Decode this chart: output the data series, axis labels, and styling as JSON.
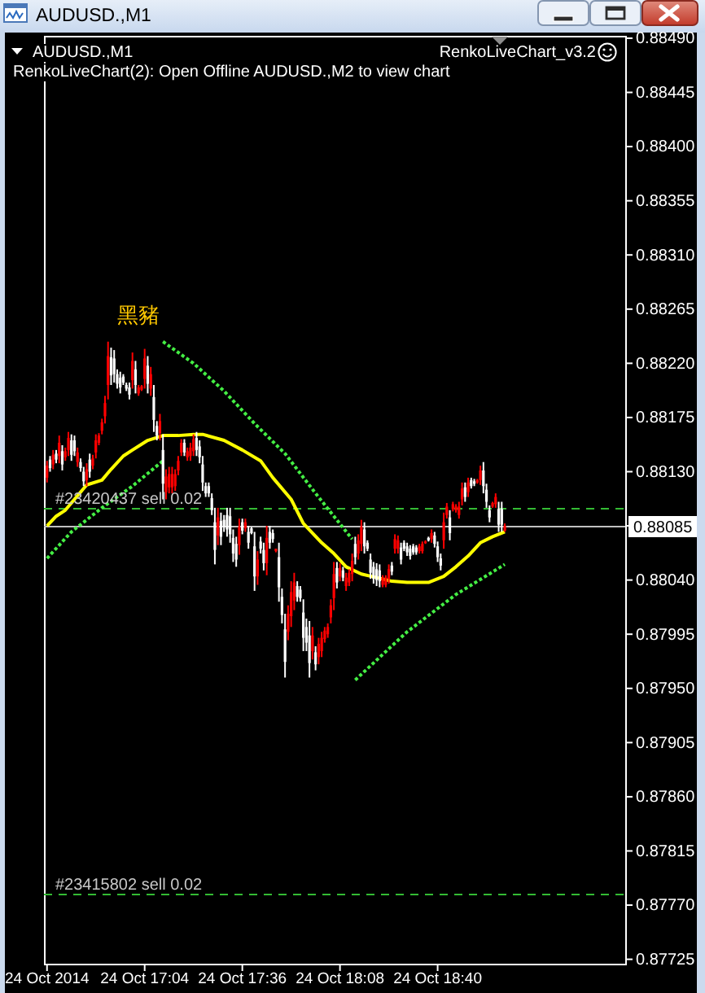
{
  "chart_data": {
    "type": "candlestick",
    "title": "AUDUSD.,M1",
    "subtitle": "RenkoLiveChart(2): Open Offline AUDUSD.,M2 to view chart",
    "annotations": [
      "AUDUSD.,M1",
      "RenkoLiveChart_v3.2",
      "黑豬"
    ],
    "x": [
      "2014-10-24T16:32",
      "2014-10-24T16:33",
      "2014-10-24T16:34",
      "2014-10-24T16:35",
      "2014-10-24T16:36",
      "2014-10-24T16:37",
      "2014-10-24T16:38",
      "2014-10-24T16:39",
      "2014-10-24T16:40",
      "2014-10-24T16:41",
      "2014-10-24T16:42",
      "2014-10-24T16:43",
      "2014-10-24T16:44",
      "2014-10-24T16:45",
      "2014-10-24T16:46",
      "2014-10-24T16:47",
      "2014-10-24T16:48",
      "2014-10-24T16:49",
      "2014-10-24T16:50",
      "2014-10-24T16:51",
      "2014-10-24T16:52",
      "2014-10-24T16:53",
      "2014-10-24T16:54",
      "2014-10-24T16:55",
      "2014-10-24T16:56",
      "2014-10-24T16:57",
      "2014-10-24T16:58",
      "2014-10-24T16:59",
      "2014-10-24T17:00",
      "2014-10-24T17:01",
      "2014-10-24T17:02",
      "2014-10-24T17:03",
      "2014-10-24T17:04",
      "2014-10-24T17:05",
      "2014-10-24T17:06",
      "2014-10-24T17:07",
      "2014-10-24T17:08",
      "2014-10-24T17:09",
      "2014-10-24T17:10",
      "2014-10-24T17:11",
      "2014-10-24T17:12",
      "2014-10-24T17:13",
      "2014-10-24T17:14",
      "2014-10-24T17:15",
      "2014-10-24T17:16",
      "2014-10-24T17:17",
      "2014-10-24T17:18",
      "2014-10-24T17:19",
      "2014-10-24T17:20",
      "2014-10-24T17:21",
      "2014-10-24T17:22",
      "2014-10-24T17:23",
      "2014-10-24T17:24",
      "2014-10-24T17:25",
      "2014-10-24T17:26",
      "2014-10-24T17:27",
      "2014-10-24T17:28",
      "2014-10-24T17:29",
      "2014-10-24T17:30",
      "2014-10-24T17:31",
      "2014-10-24T17:32",
      "2014-10-24T17:33",
      "2014-10-24T17:34",
      "2014-10-24T17:35",
      "2014-10-24T17:36",
      "2014-10-24T17:37",
      "2014-10-24T17:38",
      "2014-10-24T17:39",
      "2014-10-24T17:40",
      "2014-10-24T17:41",
      "2014-10-24T17:42",
      "2014-10-24T17:43",
      "2014-10-24T17:44",
      "2014-10-24T17:45",
      "2014-10-24T17:46",
      "2014-10-24T17:47",
      "2014-10-24T17:48",
      "2014-10-24T17:49",
      "2014-10-24T17:50",
      "2014-10-24T17:51",
      "2014-10-24T17:52",
      "2014-10-24T17:53",
      "2014-10-24T17:54",
      "2014-10-24T17:55",
      "2014-10-24T17:56",
      "2014-10-24T17:57",
      "2014-10-24T17:58",
      "2014-10-24T17:59",
      "2014-10-24T18:00",
      "2014-10-24T18:01",
      "2014-10-24T18:02",
      "2014-10-24T18:03",
      "2014-10-24T18:04",
      "2014-10-24T18:05",
      "2014-10-24T18:06",
      "2014-10-24T18:07",
      "2014-10-24T18:08",
      "2014-10-24T18:09",
      "2014-10-24T18:10",
      "2014-10-24T18:11",
      "2014-10-24T18:12",
      "2014-10-24T18:13",
      "2014-10-24T18:14",
      "2014-10-24T18:15",
      "2014-10-24T18:16",
      "2014-10-24T18:17",
      "2014-10-24T18:18",
      "2014-10-24T18:19",
      "2014-10-24T18:20",
      "2014-10-24T18:21",
      "2014-10-24T18:22",
      "2014-10-24T18:23",
      "2014-10-24T18:24",
      "2014-10-24T18:25",
      "2014-10-24T18:26",
      "2014-10-24T18:27",
      "2014-10-24T18:28",
      "2014-10-24T18:29",
      "2014-10-24T18:30",
      "2014-10-24T18:31",
      "2014-10-24T18:32",
      "2014-10-24T18:33",
      "2014-10-24T18:34",
      "2014-10-24T18:35",
      "2014-10-24T18:36",
      "2014-10-24T18:37",
      "2014-10-24T18:38",
      "2014-10-24T18:39",
      "2014-10-24T18:40",
      "2014-10-24T18:41",
      "2014-10-24T18:42",
      "2014-10-24T18:43",
      "2014-10-24T18:44",
      "2014-10-24T18:45",
      "2014-10-24T18:46",
      "2014-10-24T18:47",
      "2014-10-24T18:48",
      "2014-10-24T18:49",
      "2014-10-24T18:50",
      "2014-10-24T18:51",
      "2014-10-24T18:52",
      "2014-10-24T18:53",
      "2014-10-24T18:54",
      "2014-10-24T18:55",
      "2014-10-24T18:56",
      "2014-10-24T18:57",
      "2014-10-24T18:58",
      "2014-10-24T18:59",
      "2014-10-24T19:00",
      "2014-10-24T19:01",
      "2014-10-24T19:02"
    ],
    "ohlc": [
      [
        0.88125,
        0.88139,
        0.88121,
        0.88135
      ],
      [
        0.8814,
        0.88143,
        0.8813,
        0.88133
      ],
      [
        0.88136,
        0.88148,
        0.88132,
        0.88144
      ],
      [
        0.88145,
        0.88148,
        0.88137,
        0.8814
      ],
      [
        0.88143,
        0.8816,
        0.88137,
        0.88154
      ],
      [
        0.88147,
        0.88152,
        0.88131,
        0.88136
      ],
      [
        0.88142,
        0.8815,
        0.88139,
        0.88147
      ],
      [
        0.88148,
        0.88163,
        0.88143,
        0.88158
      ],
      [
        0.88156,
        0.88161,
        0.88139,
        0.88144
      ],
      [
        0.88156,
        0.8816,
        0.88143,
        0.88147
      ],
      [
        0.88138,
        0.8815,
        0.88134,
        0.88146
      ],
      [
        0.88138,
        0.88141,
        0.8813,
        0.88133
      ],
      [
        0.8813,
        0.88134,
        0.88118,
        0.88122
      ],
      [
        0.88123,
        0.88137,
        0.88118,
        0.88132
      ],
      [
        0.8814,
        0.88145,
        0.88125,
        0.8813
      ],
      [
        0.88135,
        0.88144,
        0.88132,
        0.88141
      ],
      [
        0.88146,
        0.88161,
        0.88141,
        0.88156
      ],
      [
        0.88154,
        0.88162,
        0.88152,
        0.8816
      ],
      [
        0.88164,
        0.88174,
        0.88161,
        0.88171
      ],
      [
        0.88176,
        0.88193,
        0.8817,
        0.88187
      ],
      [
        0.88202,
        0.88238,
        0.8819,
        0.88226
      ],
      [
        0.88225,
        0.88233,
        0.88202,
        0.8821
      ],
      [
        0.88224,
        0.88231,
        0.88204,
        0.88211
      ],
      [
        0.88211,
        0.88215,
        0.88199,
        0.88203
      ],
      [
        0.88208,
        0.88213,
        0.88195,
        0.882
      ],
      [
        0.88209,
        0.88211,
        0.88202,
        0.88204
      ],
      [
        0.88202,
        0.88204,
        0.88197,
        0.88199
      ],
      [
        0.882,
        0.88204,
        0.8819,
        0.88194
      ],
      [
        0.88206,
        0.88229,
        0.88199,
        0.88222
      ],
      [
        0.88215,
        0.88222,
        0.88195,
        0.88202
      ],
      [
        0.88195,
        0.88202,
        0.88193,
        0.882
      ],
      [
        0.88198,
        0.88202,
        0.88197,
        0.88201
      ],
      [
        0.88207,
        0.88232,
        0.88199,
        0.88224
      ],
      [
        0.88218,
        0.88226,
        0.88195,
        0.88203
      ],
      [
        0.88199,
        0.88217,
        0.88193,
        0.88211
      ],
      [
        0.88192,
        0.88202,
        0.88163,
        0.88173
      ],
      [
        0.88168,
        0.88172,
        0.88156,
        0.8816
      ],
      [
        0.88162,
        0.88178,
        0.88156,
        0.88172
      ],
      [
        0.88148,
        0.88161,
        0.88107,
        0.8812
      ],
      [
        0.88113,
        0.88132,
        0.88107,
        0.88126
      ],
      [
        0.88117,
        0.88134,
        0.88112,
        0.88128
      ],
      [
        0.88117,
        0.88134,
        0.88112,
        0.88128
      ],
      [
        0.88118,
        0.88132,
        0.88114,
        0.88128
      ],
      [
        0.88131,
        0.88143,
        0.88127,
        0.88139
      ],
      [
        0.88146,
        0.88157,
        0.88143,
        0.88154
      ],
      [
        0.88154,
        0.88157,
        0.88143,
        0.88146
      ],
      [
        0.88142,
        0.8815,
        0.88139,
        0.88147
      ],
      [
        0.88143,
        0.88154,
        0.88139,
        0.8815
      ],
      [
        0.88147,
        0.88161,
        0.88143,
        0.88157
      ],
      [
        0.88158,
        0.88163,
        0.88143,
        0.88148
      ],
      [
        0.88151,
        0.88156,
        0.88137,
        0.88142
      ],
      [
        0.88136,
        0.88143,
        0.88114,
        0.88121
      ],
      [
        0.88118,
        0.88121,
        0.88109,
        0.88112
      ],
      [
        0.88118,
        0.88121,
        0.88109,
        0.88112
      ],
      [
        0.88108,
        0.88112,
        0.88094,
        0.88098
      ],
      [
        0.88088,
        0.881,
        0.88053,
        0.88065
      ],
      [
        0.88077,
        0.881,
        0.88069,
        0.88092
      ],
      [
        0.88089,
        0.88096,
        0.88069,
        0.88076
      ],
      [
        0.8809,
        0.88094,
        0.8808,
        0.88084
      ],
      [
        0.88094,
        0.881,
        0.88076,
        0.88082
      ],
      [
        0.88093,
        0.881,
        0.88071,
        0.88078
      ],
      [
        0.88075,
        0.88082,
        0.88055,
        0.88062
      ],
      [
        0.8807,
        0.88076,
        0.88051,
        0.88057
      ],
      [
        0.88069,
        0.88091,
        0.88061,
        0.88084
      ],
      [
        0.88088,
        0.88091,
        0.88078,
        0.88081
      ],
      [
        0.88083,
        0.88091,
        0.8808,
        0.88088
      ],
      [
        0.8808,
        0.88085,
        0.88066,
        0.88071
      ],
      [
        0.88083,
        0.88084,
        0.88078,
        0.88079
      ],
      [
        0.88068,
        0.8808,
        0.88031,
        0.88043
      ],
      [
        0.88043,
        0.88064,
        0.88036,
        0.88057
      ],
      [
        0.88072,
        0.88076,
        0.88062,
        0.88066
      ],
      [
        0.88065,
        0.88071,
        0.88048,
        0.88054
      ],
      [
        0.88054,
        0.88085,
        0.88044,
        0.88075
      ],
      [
        0.8808,
        0.88085,
        0.88066,
        0.88071
      ],
      [
        0.88079,
        0.88082,
        0.88071,
        0.88074
      ],
      [
        0.88064,
        0.88066,
        0.88063,
        0.88066
      ],
      [
        0.88059,
        0.88071,
        0.88022,
        0.88034
      ],
      [
        0.88026,
        0.88033,
        0.88004,
        0.88011
      ],
      [
        0.87999,
        0.88012,
        0.87959,
        0.87972
      ],
      [
        0.87997,
        0.88019,
        0.8799,
        0.88012
      ],
      [
        0.8801,
        0.88039,
        0.88001,
        0.8803
      ],
      [
        0.88023,
        0.88046,
        0.88015,
        0.88038
      ],
      [
        0.88035,
        0.88039,
        0.88022,
        0.88026
      ],
      [
        0.88032,
        0.88035,
        0.88022,
        0.88025
      ],
      [
        0.88013,
        0.88024,
        0.87981,
        0.87992
      ],
      [
        0.88001,
        0.88008,
        0.87981,
        0.87988
      ],
      [
        0.87994,
        0.88006,
        0.87959,
        0.87971
      ],
      [
        0.87981,
        0.88001,
        0.87974,
        0.87994
      ],
      [
        0.8798,
        0.87985,
        0.87965,
        0.8797
      ],
      [
        0.87976,
        0.87992,
        0.8797,
        0.87987
      ],
      [
        0.87981,
        0.87997,
        0.87976,
        0.87992
      ],
      [
        0.87991,
        0.88001,
        0.87988,
        0.87998
      ],
      [
        0.87995,
        0.88004,
        0.87992,
        0.88001
      ],
      [
        0.88009,
        0.88024,
        0.88004,
        0.88019
      ],
      [
        0.88025,
        0.88055,
        0.88015,
        0.88045
      ],
      [
        0.8805,
        0.88055,
        0.88033,
        0.88038
      ],
      [
        0.88043,
        0.88054,
        0.88039,
        0.8805
      ],
      [
        0.88048,
        0.88051,
        0.88039,
        0.88042
      ],
      [
        0.88035,
        0.88046,
        0.88031,
        0.88042
      ],
      [
        0.88038,
        0.88049,
        0.88035,
        0.88046
      ],
      [
        0.88045,
        0.88062,
        0.88039,
        0.88056
      ],
      [
        0.8807,
        0.88076,
        0.88053,
        0.88059
      ],
      [
        0.88062,
        0.88078,
        0.88057,
        0.88073
      ],
      [
        0.8807,
        0.8809,
        0.88064,
        0.88084
      ],
      [
        0.88082,
        0.88088,
        0.88062,
        0.88068
      ],
      [
        0.88071,
        0.88073,
        0.88064,
        0.88066
      ],
      [
        0.88057,
        0.88062,
        0.88041,
        0.88046
      ],
      [
        0.88051,
        0.88055,
        0.88037,
        0.88041
      ],
      [
        0.88049,
        0.88054,
        0.88035,
        0.8804
      ],
      [
        0.88048,
        0.88053,
        0.88034,
        0.88039
      ],
      [
        0.88036,
        0.88044,
        0.88034,
        0.88042
      ],
      [
        0.88036,
        0.88044,
        0.88034,
        0.88042
      ],
      [
        0.88041,
        0.88053,
        0.88037,
        0.88049
      ],
      [
        0.88052,
        0.88055,
        0.88044,
        0.88047
      ],
      [
        0.88066,
        0.88078,
        0.88062,
        0.88074
      ],
      [
        0.88066,
        0.88077,
        0.88062,
        0.88073
      ],
      [
        0.88067,
        0.88071,
        0.88053,
        0.88057
      ],
      [
        0.88071,
        0.88073,
        0.88064,
        0.88066
      ],
      [
        0.88068,
        0.88071,
        0.8806,
        0.88063
      ],
      [
        0.88066,
        0.88069,
        0.88057,
        0.8806
      ],
      [
        0.88068,
        0.8807,
        0.88061,
        0.88063
      ],
      [
        0.88067,
        0.88069,
        0.88061,
        0.88063
      ],
      [
        0.88064,
        0.8807,
        0.88062,
        0.88068
      ],
      [
        0.88064,
        0.88072,
        0.88062,
        0.8807
      ],
      [
        0.88071,
        0.88073,
        0.8807,
        0.88072
      ],
      [
        0.88075,
        0.88076,
        0.88072,
        0.88073
      ],
      [
        0.88074,
        0.88082,
        0.88071,
        0.88079
      ],
      [
        0.88077,
        0.8808,
        0.88067,
        0.8807
      ],
      [
        0.88068,
        0.88072,
        0.88055,
        0.88059
      ],
      [
        0.88058,
        0.88062,
        0.88048,
        0.88052
      ],
      [
        0.88073,
        0.88096,
        0.88066,
        0.88088
      ],
      [
        0.88094,
        0.88104,
        0.88091,
        0.88101
      ],
      [
        0.88092,
        0.88098,
        0.88073,
        0.88079
      ],
      [
        0.88099,
        0.88105,
        0.88097,
        0.88103
      ],
      [
        0.88098,
        0.88103,
        0.88096,
        0.88101
      ],
      [
        0.88094,
        0.88105,
        0.88091,
        0.88101
      ],
      [
        0.88107,
        0.88121,
        0.88102,
        0.88116
      ],
      [
        0.88117,
        0.88121,
        0.88105,
        0.88109
      ],
      [
        0.88113,
        0.88125,
        0.88109,
        0.88121
      ],
      [
        0.88123,
        0.88125,
        0.88116,
        0.88118
      ],
      [
        0.88122,
        0.88124,
        0.88118,
        0.8812
      ],
      [
        0.88121,
        0.88124,
        0.8812,
        0.88123
      ],
      [
        0.88123,
        0.88135,
        0.88119,
        0.88131
      ],
      [
        0.88131,
        0.88138,
        0.88112,
        0.88118
      ],
      [
        0.88115,
        0.8812,
        0.881,
        0.88105
      ],
      [
        0.88098,
        0.88102,
        0.88088,
        0.88092
      ],
      [
        0.88101,
        0.88105,
        0.881,
        0.88104
      ],
      [
        0.88103,
        0.88112,
        0.881,
        0.88109
      ],
      [
        0.88099,
        0.88105,
        0.8808,
        0.88086
      ],
      [
        0.88099,
        0.88105,
        0.8808,
        0.88086
      ],
      [
        0.88081,
        0.88087,
        0.8808,
        0.88085
      ]
    ],
    "colors": [
      "#ff0000",
      "#ffffff",
      "#ff0000",
      "#ffffff",
      "#ff0000",
      "#ffffff",
      "#ff0000",
      "#ff0000",
      "#ffffff",
      "#ffffff",
      "#ff0000",
      "#ffffff",
      "#ffffff",
      "#ff0000",
      "#ffffff",
      "#ff0000",
      "#ff0000",
      "#ff0000",
      "#ff0000",
      "#ff0000",
      "#ff0000",
      "#ffffff",
      "#ffffff",
      "#ffffff",
      "#ffffff",
      "#ffffff",
      "#ffffff",
      "#ffffff",
      "#ff0000",
      "#ffffff",
      "#ff0000",
      "#ff0000",
      "#ff0000",
      "#ffffff",
      "#ff0000",
      "#ffffff",
      "#ffffff",
      "#ff0000",
      "#ffffff",
      "#ff0000",
      "#ff0000",
      "#ff0000",
      "#ff0000",
      "#ff0000",
      "#ff0000",
      "#ffffff",
      "#ff0000",
      "#ff0000",
      "#ff0000",
      "#ffffff",
      "#ffffff",
      "#ffffff",
      "#ffffff",
      "#ffffff",
      "#ffffff",
      "#ffffff",
      "#ff0000",
      "#ffffff",
      "#ffffff",
      "#ffffff",
      "#ffffff",
      "#ffffff",
      "#ffffff",
      "#ff0000",
      "#ffffff",
      "#ff0000",
      "#ffffff",
      "#ffffff",
      "#ffffff",
      "#ff0000",
      "#ffffff",
      "#ffffff",
      "#ff0000",
      "#ffffff",
      "#ffffff",
      "#ff0000",
      "#ffffff",
      "#ffffff",
      "#ffffff",
      "#ff0000",
      "#ff0000",
      "#ff0000",
      "#ffffff",
      "#ffffff",
      "#ffffff",
      "#ffffff",
      "#ffffff",
      "#ff0000",
      "#ffffff",
      "#ff0000",
      "#ff0000",
      "#ff0000",
      "#ff0000",
      "#ff0000",
      "#ff0000",
      "#ffffff",
      "#ff0000",
      "#ffffff",
      "#ff0000",
      "#ff0000",
      "#ff0000",
      "#ffffff",
      "#ff0000",
      "#ff0000",
      "#ffffff",
      "#ffffff",
      "#ffffff",
      "#ffffff",
      "#ffffff",
      "#ffffff",
      "#ff0000",
      "#ff0000",
      "#ff0000",
      "#ffffff",
      "#ff0000",
      "#ff0000",
      "#ffffff",
      "#ffffff",
      "#ffffff",
      "#ffffff",
      "#ffffff",
      "#ffffff",
      "#ff0000",
      "#ff0000",
      "#ff0000",
      "#ffffff",
      "#ff0000",
      "#ffffff",
      "#ffffff",
      "#ffffff",
      "#ff0000",
      "#ff0000",
      "#ffffff",
      "#ff0000",
      "#ff0000",
      "#ff0000",
      "#ff0000",
      "#ffffff",
      "#ff0000",
      "#ffffff",
      "#ffffff",
      "#ff0000",
      "#ff0000",
      "#ffffff",
      "#ffffff",
      "#ffffff",
      "#ff0000",
      "#ff0000",
      "#ffffff",
      "#ffffff",
      "#ff0000"
    ],
    "series": [
      {
        "type": "line",
        "color": "#ffff00",
        "line_style": "solid",
        "x": [
          "2014-10-24T16:32",
          "2014-10-24T16:35",
          "2014-10-24T16:38",
          "2014-10-24T16:45",
          "2014-10-24T16:50",
          "2014-10-24T16:53",
          "2014-10-24T16:57",
          "2014-10-24T17:00",
          "2014-10-24T17:05",
          "2014-10-24T17:10",
          "2014-10-24T17:15",
          "2014-10-24T17:20",
          "2014-10-24T17:23",
          "2014-10-24T17:30",
          "2014-10-24T17:36",
          "2014-10-24T17:42",
          "2014-10-24T17:46",
          "2014-10-24T17:52",
          "2014-10-24T17:56",
          "2014-10-24T18:02",
          "2014-10-24T18:06",
          "2014-10-24T18:10",
          "2014-10-24T18:15",
          "2014-10-24T18:20",
          "2014-10-24T18:25",
          "2014-10-24T18:30",
          "2014-10-24T18:37",
          "2014-10-24T18:42",
          "2014-10-24T18:46",
          "2014-10-24T18:50",
          "2014-10-24T18:54",
          "2014-10-24T18:58",
          "2014-10-24T19:02"
        ],
        "values": [
          0.88085,
          0.88093,
          0.88098,
          0.88119,
          0.88123,
          0.88132,
          0.88143,
          0.88148,
          0.88156,
          0.8816,
          0.8816,
          0.88161,
          0.88161,
          0.88156,
          0.88148,
          0.88139,
          0.88125,
          0.88107,
          0.88087,
          0.88071,
          0.88062,
          0.88051,
          0.88045,
          0.88042,
          0.88039,
          0.88038,
          0.88038,
          0.88043,
          0.88051,
          0.8806,
          0.88071,
          0.88076,
          0.8808
        ]
      },
      {
        "type": "line",
        "color": "#44ee44",
        "line_style": "dotted",
        "x": [
          "2014-10-24T16:32",
          "2014-10-24T16:40",
          "2014-10-24T16:50",
          "2014-10-24T17:00",
          "2014-10-24T17:10"
        ],
        "values": [
          0.88058,
          0.8808,
          0.881,
          0.88118,
          0.88139
        ]
      },
      {
        "type": "line",
        "color": "#44ee44",
        "line_style": "dotted",
        "x": [
          "2014-10-24T17:10",
          "2014-10-24T17:20",
          "2014-10-24T17:30",
          "2014-10-24T17:40",
          "2014-10-24T17:50",
          "2014-10-24T18:00",
          "2014-10-24T18:12"
        ],
        "values": [
          0.88238,
          0.8822,
          0.88197,
          0.8817,
          0.88145,
          0.88112,
          0.88074
        ]
      },
      {
        "type": "line",
        "color": "#44ee44",
        "line_style": "dotted",
        "x": [
          "2014-10-24T18:13",
          "2014-10-24T18:30",
          "2014-10-24T18:46",
          "2014-10-24T19:02"
        ],
        "values": [
          0.87957,
          0.87997,
          0.88028,
          0.88053
        ]
      }
    ],
    "xlim": [
      "2014-10-24T16:31",
      "2014-10-24T19:42"
    ],
    "xticks": [
      {
        "value": "2014-10-24T16:32",
        "label": "24 Oct 2014"
      },
      {
        "value": "2014-10-24T17:04",
        "label": "24 Oct 17:04"
      },
      {
        "value": "2014-10-24T17:36",
        "label": "24 Oct 17:36"
      },
      {
        "value": "2014-10-24T18:08",
        "label": "24 Oct 18:08"
      },
      {
        "value": "2014-10-24T18:40",
        "label": "24 Oct 18:40"
      }
    ],
    "ylim": [
      0.8772,
      0.88492
    ],
    "yticks": [
      {
        "value": 0.8849,
        "label": "0.88490"
      },
      0.88445,
      {
        "value": 0.884,
        "label": "0.88400"
      },
      0.88355,
      {
        "value": 0.8831,
        "label": "0.88310"
      },
      0.88265,
      {
        "value": 0.8822,
        "label": "0.88220"
      },
      0.88175,
      {
        "value": 0.8813,
        "label": "0.88130"
      },
      {
        "value": 0.88085,
        "label": null
      },
      {
        "value": 0.8804,
        "label": "0.88040"
      },
      0.87995,
      {
        "value": 0.8795,
        "label": "0.87950"
      },
      0.87905,
      {
        "value": 0.8786,
        "label": "0.87860"
      },
      0.87815,
      {
        "value": 0.8777,
        "label": "0.87770"
      },
      0.87725
    ],
    "ref_lines": [
      {
        "axis": "y",
        "value": 0.881,
        "label": "#23420437 sell 0.02",
        "color": "#33bb33",
        "line_style": "dashed"
      },
      {
        "axis": "y",
        "value": 0.8778,
        "label": "#23415802 sell 0.02",
        "color": "#33bb33",
        "line_style": "dashed"
      },
      {
        "axis": "y",
        "value": 0.88085,
        "label": "0.88085",
        "color": "#c0c0c0",
        "line_style": "solid"
      }
    ]
  }
}
